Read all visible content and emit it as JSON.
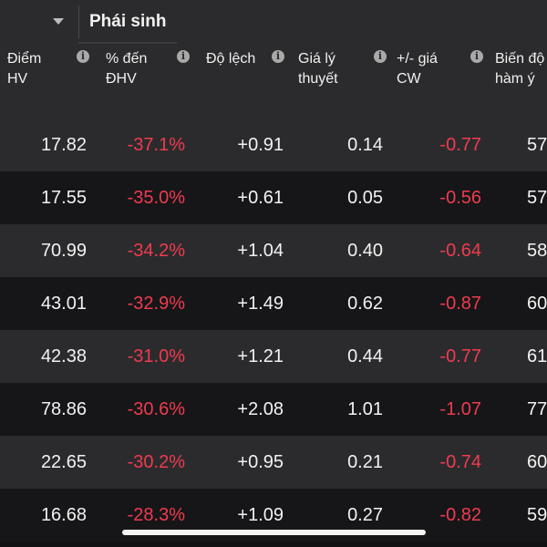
{
  "tabs": {
    "active_label": "Phái sinh"
  },
  "columns": [
    {
      "line1": "Điểm",
      "line2": "HV"
    },
    {
      "line1": "% đến",
      "line2": "ĐHV"
    },
    {
      "line1": "Độ lệch",
      "line2": ""
    },
    {
      "line1": "Giá lý",
      "line2": "thuyết"
    },
    {
      "line1": "+/- giá",
      "line2": "CW"
    },
    {
      "line1": "Biến độ",
      "line2": "hàm ý"
    }
  ],
  "icons": {
    "info": "info-icon",
    "dropdown": "chevron-down-icon",
    "info_glyph": "i"
  },
  "colors": {
    "negative": "#ef3b4f",
    "positive": "#f2f2f2",
    "row_light": "#2b2b2d",
    "row_dark": "#161618"
  },
  "rows": [
    {
      "diem_hv": "17.82",
      "pct_dhv": "-37.1%",
      "do_lech": "+0.91",
      "gia_ly_thuyet": "0.14",
      "chenh_gia_cw": "-0.77",
      "bien_do": "57"
    },
    {
      "diem_hv": "17.55",
      "pct_dhv": "-35.0%",
      "do_lech": "+0.61",
      "gia_ly_thuyet": "0.05",
      "chenh_gia_cw": "-0.56",
      "bien_do": "57"
    },
    {
      "diem_hv": "70.99",
      "pct_dhv": "-34.2%",
      "do_lech": "+1.04",
      "gia_ly_thuyet": "0.40",
      "chenh_gia_cw": "-0.64",
      "bien_do": "58"
    },
    {
      "diem_hv": "43.01",
      "pct_dhv": "-32.9%",
      "do_lech": "+1.49",
      "gia_ly_thuyet": "0.62",
      "chenh_gia_cw": "-0.87",
      "bien_do": "60"
    },
    {
      "diem_hv": "42.38",
      "pct_dhv": "-31.0%",
      "do_lech": "+1.21",
      "gia_ly_thuyet": "0.44",
      "chenh_gia_cw": "-0.77",
      "bien_do": "61"
    },
    {
      "diem_hv": "78.86",
      "pct_dhv": "-30.6%",
      "do_lech": "+2.08",
      "gia_ly_thuyet": "1.01",
      "chenh_gia_cw": "-1.07",
      "bien_do": "77"
    },
    {
      "diem_hv": "22.65",
      "pct_dhv": "-30.2%",
      "do_lech": "+0.95",
      "gia_ly_thuyet": "0.21",
      "chenh_gia_cw": "-0.74",
      "bien_do": "60"
    },
    {
      "diem_hv": "16.68",
      "pct_dhv": "-28.3%",
      "do_lech": "+1.09",
      "gia_ly_thuyet": "0.27",
      "chenh_gia_cw": "-0.82",
      "bien_do": "59"
    }
  ]
}
